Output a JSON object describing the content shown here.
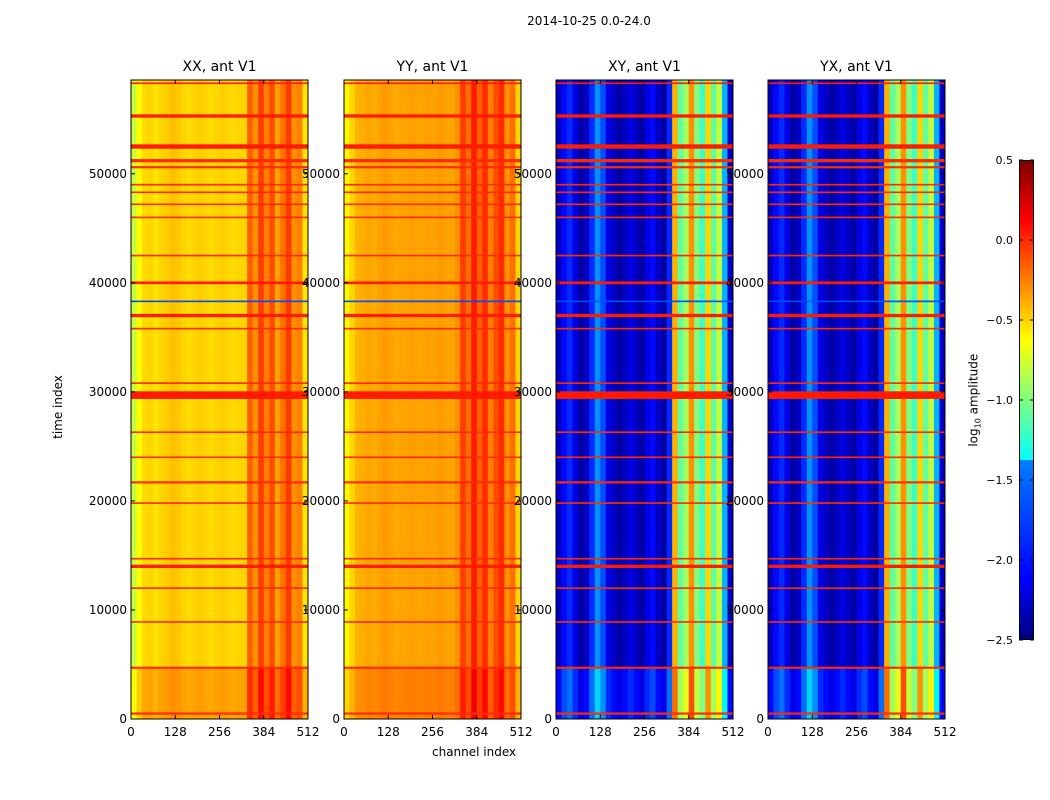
{
  "figure_title": "2014-10-25 0.0-24.0",
  "chart_data": {
    "type": "heatmap",
    "suptitle": "2014-10-25 0.0-24.0",
    "xlabel": "channel index",
    "ylabel": "time index",
    "xlim": [
      0,
      512
    ],
    "ylim": [
      0,
      58600
    ],
    "xticks": [
      "0",
      "128",
      "256",
      "384",
      "512"
    ],
    "yticks": [
      "0",
      "10000",
      "20000",
      "30000",
      "40000",
      "50000"
    ],
    "colorbar": {
      "label_main": "amplitude",
      "label_log": "log",
      "label_sub": "10",
      "range": [
        -2.5,
        0.5
      ],
      "ticks": [
        "0.5",
        "0.0",
        "−0.5",
        "−1.0",
        "−1.5",
        "−2.0",
        "−2.5"
      ],
      "colormap": "jet"
    },
    "channel_bin_width": 16,
    "low_time_segment_end": 4700,
    "panels": [
      {
        "title": "XX, ant V1",
        "low_offset": 0.15,
        "profile": [
          -0.8,
          -0.62,
          -0.52,
          -0.5,
          -0.55,
          -0.5,
          -0.48,
          -0.44,
          -0.46,
          -0.5,
          -0.52,
          -0.5,
          -0.48,
          -0.5,
          -0.52,
          -0.5,
          -0.48,
          -0.5,
          -0.52,
          -0.5,
          -0.5,
          -0.15,
          -0.3,
          -0.05,
          -0.25,
          -0.1,
          -0.35,
          -0.2,
          -0.05,
          -0.3,
          -0.25,
          -0.55
        ]
      },
      {
        "title": "YY, ant V1",
        "low_offset": 0.1,
        "profile": [
          -0.6,
          -0.5,
          -0.4,
          -0.38,
          -0.36,
          -0.38,
          -0.35,
          -0.33,
          -0.35,
          -0.37,
          -0.36,
          -0.35,
          -0.34,
          -0.36,
          -0.35,
          -0.34,
          -0.35,
          -0.33,
          -0.35,
          -0.36,
          -0.3,
          -0.05,
          -0.2,
          0.05,
          -0.15,
          0.0,
          -0.25,
          -0.1,
          0.0,
          -0.3,
          -0.2,
          -0.5
        ]
      },
      {
        "title": "XY, ant V1",
        "low_offset": 0.2,
        "profile": [
          -2.3,
          -2.1,
          -2.0,
          -2.2,
          -2.4,
          -2.3,
          -2.0,
          -1.7,
          -1.9,
          -2.2,
          -2.3,
          -2.4,
          -2.3,
          -2.2,
          -2.3,
          -2.4,
          -2.2,
          -2.1,
          -2.3,
          -2.4,
          -2.0,
          -0.4,
          -1.1,
          -0.9,
          -0.3,
          -1.0,
          -1.2,
          -0.5,
          -1.1,
          -0.8,
          -1.6,
          -2.3
        ]
      },
      {
        "title": "YX, ant V1",
        "low_offset": 0.2,
        "profile": [
          -2.3,
          -2.1,
          -2.0,
          -2.2,
          -2.4,
          -2.3,
          -2.0,
          -1.7,
          -1.9,
          -2.2,
          -2.3,
          -2.4,
          -2.3,
          -2.2,
          -2.3,
          -2.4,
          -2.2,
          -2.1,
          -2.3,
          -2.4,
          -2.0,
          -0.4,
          -1.1,
          -0.9,
          -0.3,
          -1.0,
          -1.2,
          -0.5,
          -1.1,
          -0.8,
          -1.6,
          -2.3
        ]
      }
    ],
    "flagged_rows": [
      {
        "time": 58300,
        "value": 0.05,
        "width": 150
      },
      {
        "time": 55300,
        "value": 0.05,
        "width": 300
      },
      {
        "time": 52500,
        "value": 0.05,
        "width": 400
      },
      {
        "time": 51200,
        "value": 0.0,
        "width": 300
      },
      {
        "time": 50600,
        "value": 0.0,
        "width": 200
      },
      {
        "time": 49000,
        "value": 0.0,
        "width": 150
      },
      {
        "time": 48300,
        "value": 0.0,
        "width": 150
      },
      {
        "time": 47200,
        "value": 0.0,
        "width": 150
      },
      {
        "time": 46000,
        "value": 0.0,
        "width": 150
      },
      {
        "time": 42500,
        "value": 0.0,
        "width": 150
      },
      {
        "time": 40000,
        "value": 0.05,
        "width": 250
      },
      {
        "time": 38300,
        "value": -1.9,
        "width": 150
      },
      {
        "time": 37000,
        "value": 0.05,
        "width": 300
      },
      {
        "time": 35800,
        "value": 0.0,
        "width": 150
      },
      {
        "time": 30800,
        "value": 0.0,
        "width": 150
      },
      {
        "time": 29700,
        "value": 0.05,
        "width": 700
      },
      {
        "time": 26300,
        "value": 0.0,
        "width": 150
      },
      {
        "time": 24000,
        "value": 0.0,
        "width": 150
      },
      {
        "time": 21700,
        "value": 0.0,
        "width": 200
      },
      {
        "time": 19800,
        "value": 0.0,
        "width": 150
      },
      {
        "time": 14700,
        "value": 0.0,
        "width": 150
      },
      {
        "time": 14000,
        "value": 0.05,
        "width": 300
      },
      {
        "time": 12000,
        "value": 0.0,
        "width": 150
      },
      {
        "time": 8900,
        "value": 0.0,
        "width": 150
      },
      {
        "time": 4700,
        "value": 0.0,
        "width": 200
      },
      {
        "time": 500,
        "value": 0.0,
        "width": 200
      }
    ]
  }
}
